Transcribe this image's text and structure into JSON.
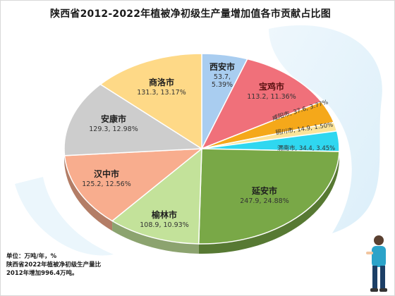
{
  "chart_data": {
    "type": "pie",
    "title": "陕西省2012-2022年植被净初级生产量增加值各市贡献占比图",
    "slices": [
      {
        "name": "西安市",
        "value": 53.7,
        "percent": "5.39%",
        "color": "#a9cdf0",
        "label": "53.7,\n5.39%"
      },
      {
        "name": "宝鸡市",
        "value": 113.2,
        "percent": "11.36%",
        "color": "#f0707a",
        "label": "113.2, 11.36%"
      },
      {
        "name": "咸阳市",
        "value": 37.6,
        "percent": "3.77%",
        "color": "#f5a81a",
        "label": "37.6, 3.77%"
      },
      {
        "name": "铜川市",
        "value": 14.9,
        "percent": "1.50%",
        "color": "#fbe49a",
        "label": "14.9, 1.50%"
      },
      {
        "name": "渭南市",
        "value": 34.4,
        "percent": "3.45%",
        "color": "#2fd7f0",
        "label": "34.4, 3.45%"
      },
      {
        "name": "延安市",
        "value": 247.9,
        "percent": "24.88%",
        "color": "#79a847",
        "label": "247.9, 24.88%"
      },
      {
        "name": "榆林市",
        "value": 108.9,
        "percent": "10.93%",
        "color": "#c3e29a",
        "label": "108.9, 10.93%"
      },
      {
        "name": "汉中市",
        "value": 125.2,
        "percent": "12.56%",
        "color": "#f8ad8e",
        "label": "125.2, 12.56%"
      },
      {
        "name": "安康市",
        "value": 129.3,
        "percent": "12.98%",
        "color": "#cdcdcd",
        "label": "129.3, 12.98%"
      },
      {
        "name": "商洛市",
        "value": 131.3,
        "percent": "13.17%",
        "color": "#fed987",
        "label": "131.3, 13.17%"
      }
    ]
  },
  "note": {
    "unit": "单位：万吨/年，%",
    "text": "陕西省2022年植被净初级生产量比2012年增加996.4万吨。"
  }
}
